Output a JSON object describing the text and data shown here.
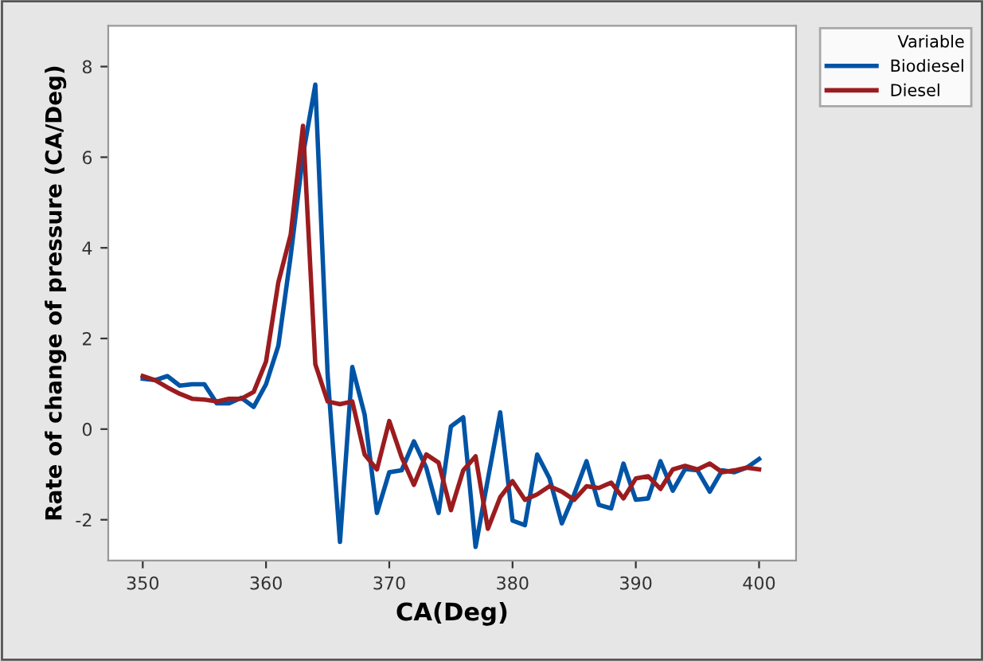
{
  "chart_data": {
    "type": "line",
    "xlabel": "CA(Deg)",
    "ylabel": "Rate of change of pressure (CA/Deg)",
    "legend_title": "Variable",
    "legend": "top right",
    "grid": false,
    "marker": "none",
    "line_style": "solid",
    "x": [
      350,
      351,
      352,
      353,
      354,
      355,
      356,
      357,
      358,
      359,
      360,
      361,
      362,
      363,
      364,
      365,
      366,
      367,
      368,
      369,
      370,
      371,
      372,
      373,
      374,
      375,
      376,
      377,
      378,
      379,
      380,
      381,
      382,
      383,
      384,
      385,
      386,
      387,
      388,
      389,
      390,
      391,
      392,
      393,
      394,
      395,
      396,
      397,
      398,
      399,
      400
    ],
    "xlim": [
      347.2,
      403
    ],
    "xticks": [
      350,
      360,
      370,
      380,
      390,
      400
    ],
    "ylim": [
      -2.9,
      8.9
    ],
    "yticks": [
      -2,
      0,
      2,
      4,
      6,
      8
    ],
    "series": [
      {
        "name": "Biodiesel",
        "color": "#0054a6",
        "values": [
          1.11,
          1.08,
          1.17,
          0.96,
          0.99,
          0.99,
          0.57,
          0.57,
          0.69,
          0.49,
          0.99,
          1.84,
          3.82,
          6.05,
          7.6,
          1.2,
          -2.49,
          1.37,
          0.32,
          -1.85,
          -0.95,
          -0.91,
          -0.27,
          -0.85,
          -1.85,
          0.06,
          0.26,
          -2.6,
          -1.1,
          0.37,
          -2.02,
          -2.12,
          -0.56,
          -1.09,
          -2.08,
          -1.44,
          -0.71,
          -1.67,
          -1.75,
          -0.76,
          -1.56,
          -1.53,
          -0.71,
          -1.36,
          -0.88,
          -0.91,
          -1.38,
          -0.91,
          -0.95,
          -0.85,
          -0.66
        ]
      },
      {
        "name": "Diesel",
        "color": "#9b1c1f",
        "values": [
          1.17,
          1.08,
          0.92,
          0.78,
          0.67,
          0.65,
          0.61,
          0.67,
          0.67,
          0.82,
          1.49,
          3.24,
          4.29,
          6.69,
          1.43,
          0.61,
          0.55,
          0.61,
          -0.56,
          -0.89,
          0.18,
          -0.62,
          -1.23,
          -0.56,
          -0.74,
          -1.79,
          -0.91,
          -0.6,
          -2.2,
          -1.5,
          -1.15,
          -1.56,
          -1.44,
          -1.26,
          -1.38,
          -1.56,
          -1.26,
          -1.3,
          -1.18,
          -1.53,
          -1.09,
          -1.04,
          -1.32,
          -0.89,
          -0.81,
          -0.89,
          -0.76,
          -0.95,
          -0.91,
          -0.85,
          -0.89
        ]
      }
    ]
  }
}
